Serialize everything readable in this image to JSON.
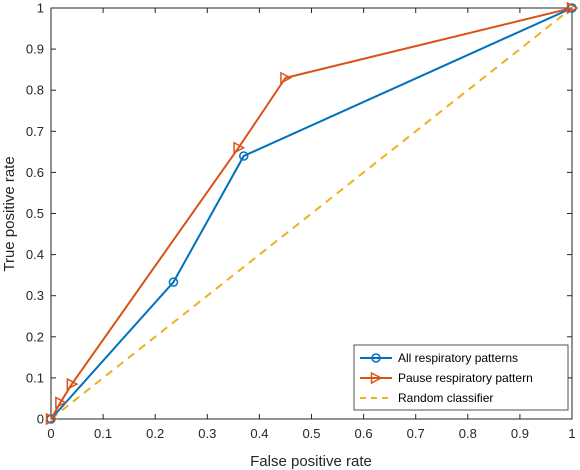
{
  "chart_data": {
    "type": "line",
    "title": "",
    "xlabel": "False positive rate",
    "ylabel": "True positive rate",
    "xlim": [
      0,
      1
    ],
    "ylim": [
      0,
      1
    ],
    "xticks": [
      "0",
      "0.1",
      "0.2",
      "0.3",
      "0.4",
      "0.5",
      "0.6",
      "0.7",
      "0.8",
      "0.9",
      "1"
    ],
    "yticks": [
      "0",
      "0.1",
      "0.2",
      "0.3",
      "0.4",
      "0.5",
      "0.6",
      "0.7",
      "0.8",
      "0.9",
      "1"
    ],
    "grid": false,
    "legend_position": "bottom-right",
    "series": [
      {
        "name": "All respiratory patterns",
        "color": "#0072BD",
        "marker": "circle",
        "line_style": "solid",
        "x": [
          0,
          0.235,
          0.37,
          1
        ],
        "y": [
          0,
          0.333,
          0.64,
          1
        ]
      },
      {
        "name": "Pause respiratory pattern",
        "color": "#D95319",
        "marker": "triangle-right",
        "line_style": "solid",
        "x": [
          0,
          0.018,
          0.04,
          0.36,
          0.45,
          1
        ],
        "y": [
          0,
          0.04,
          0.085,
          0.66,
          0.83,
          1
        ]
      },
      {
        "name": "Random classifier",
        "color": "#EDB120",
        "marker": "none",
        "line_style": "dashed",
        "x": [
          0,
          1
        ],
        "y": [
          0,
          1
        ]
      }
    ]
  }
}
